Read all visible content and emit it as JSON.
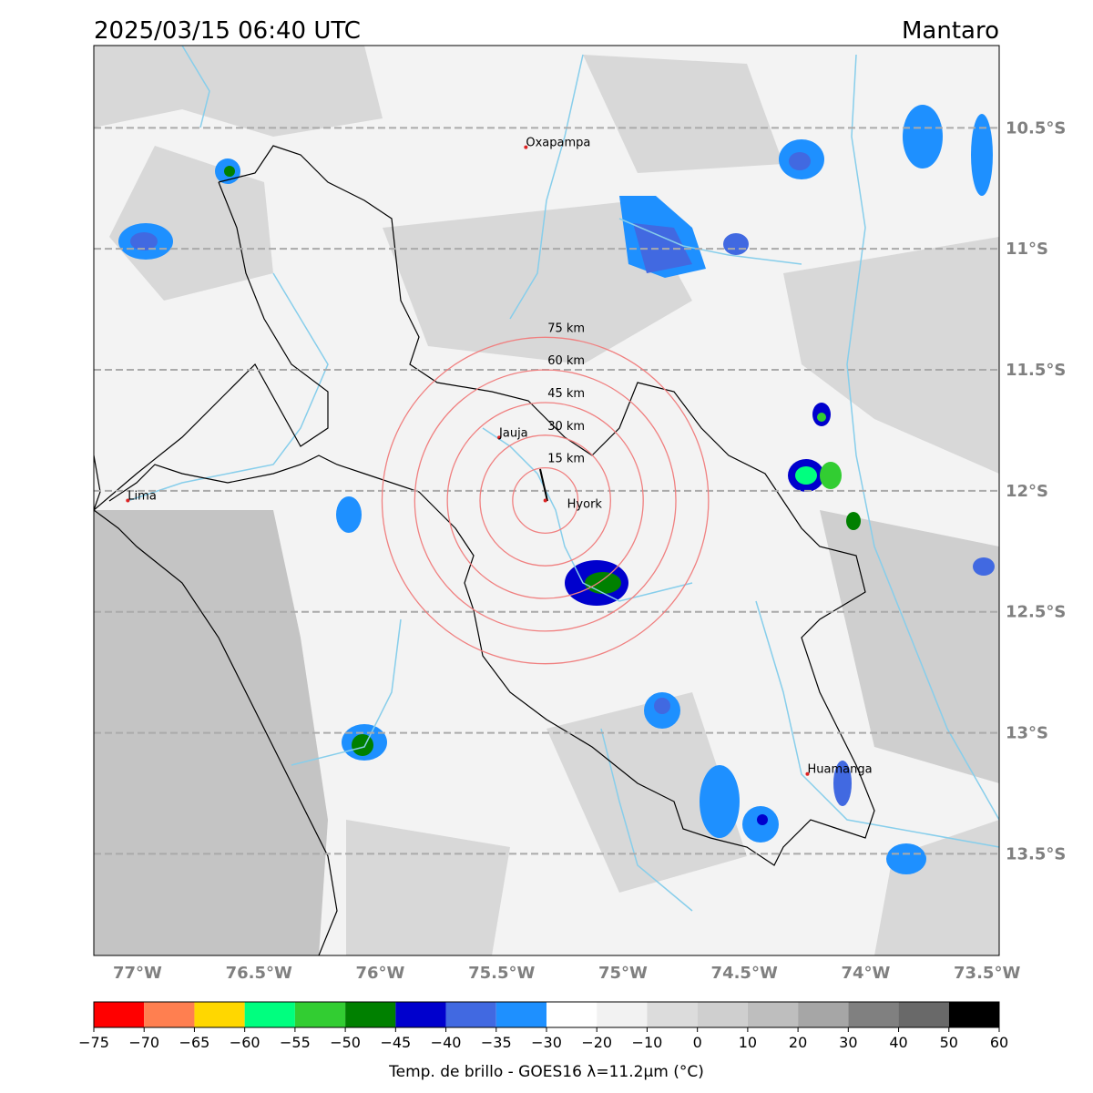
{
  "map": {
    "title": "2025/03/15 06:40 UTC",
    "region": "Mantaro",
    "xlim": [
      -77.18,
      -73.45
    ],
    "ylim": [
      -13.92,
      -10.16
    ],
    "xticks": [
      {
        "value": -77,
        "label": "77°W"
      },
      {
        "value": -76.5,
        "label": "76.5°W"
      },
      {
        "value": -76,
        "label": "76°W"
      },
      {
        "value": -75.5,
        "label": "75.5°W"
      },
      {
        "value": -75,
        "label": "75°W"
      },
      {
        "value": -74.5,
        "label": "74.5°W"
      },
      {
        "value": -74,
        "label": "74°W"
      },
      {
        "value": -73.5,
        "label": "73.5°W"
      }
    ],
    "yticks": [
      {
        "value": -10.5,
        "label": "10.5°S"
      },
      {
        "value": -11,
        "label": "11°S"
      },
      {
        "value": -11.5,
        "label": "11.5°S"
      },
      {
        "value": -12,
        "label": "12°S"
      },
      {
        "value": -12.5,
        "label": "12.5°S"
      },
      {
        "value": -13,
        "label": "13°S"
      },
      {
        "value": -13.5,
        "label": "13.5°S"
      }
    ],
    "cities": [
      {
        "name": "Oxapampa",
        "lon": -75.4,
        "lat": -10.58
      },
      {
        "name": "Jauja",
        "lon": -75.51,
        "lat": -11.78
      },
      {
        "name": "Lima",
        "lon": -77.04,
        "lat": -12.04
      },
      {
        "name": "Hyork",
        "lon": -75.32,
        "lat": -12.04
      },
      {
        "name": "Huamanga",
        "lon": -74.24,
        "lat": -13.17
      }
    ],
    "rings": {
      "values": [
        15,
        30,
        45,
        60,
        75
      ],
      "value_labels": [
        "15 km",
        "30 km",
        "45 km",
        "60 km",
        "75 km"
      ]
    },
    "colorbar": {
      "label": "Temp. de brillo - GOES16 λ=11.2μm (°C)",
      "ticks": [
        {
          "value": -75,
          "label": "−75"
        },
        {
          "value": -70,
          "label": "−70"
        },
        {
          "value": -65,
          "label": "−65"
        },
        {
          "value": -60,
          "label": "−60"
        },
        {
          "value": -55,
          "label": "−55"
        },
        {
          "value": -50,
          "label": "−50"
        },
        {
          "value": -45,
          "label": "−45"
        },
        {
          "value": -40,
          "label": "−40"
        },
        {
          "value": -35,
          "label": "−35"
        },
        {
          "value": -30,
          "label": "−30"
        },
        {
          "value": -20,
          "label": "−20"
        },
        {
          "value": -10,
          "label": "−10"
        },
        0,
        10,
        20,
        30,
        40,
        50,
        60
      ],
      "colors": [
        "#ff0000",
        "#ff7f50",
        "#ffd700",
        "#00ff7f",
        "#32cd32",
        "#008000",
        "#0000cd",
        "#4169e1",
        "#1e90ff",
        "#ffffff",
        "#f2f2f2",
        "#dcdcdc",
        "#cfcfcf",
        "#bebebe",
        "#a6a6a6",
        "#808080",
        "#696969",
        "#000000"
      ]
    }
  }
}
